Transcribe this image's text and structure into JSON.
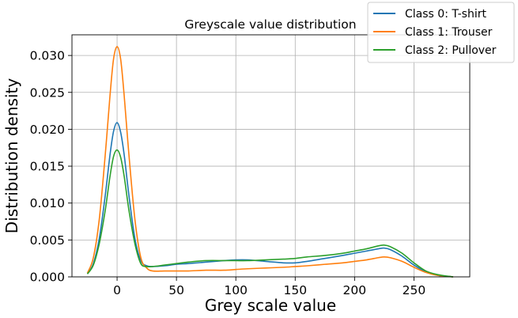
{
  "chart_data": {
    "type": "line",
    "title": "Greyscale value distribution",
    "xlabel": "Grey scale value",
    "ylabel": "Distribution density",
    "xlim": [
      -38,
      297
    ],
    "ylim": [
      0,
      0.0328
    ],
    "x_ticks": [
      0,
      50,
      100,
      150,
      200,
      250
    ],
    "y_ticks": [
      0.0,
      0.005,
      0.01,
      0.015,
      0.02,
      0.025,
      0.03
    ],
    "x_tick_labels": [
      "0",
      "50",
      "100",
      "150",
      "200",
      "250"
    ],
    "y_tick_labels": [
      "0.000",
      "0.005",
      "0.010",
      "0.015",
      "0.020",
      "0.025",
      "0.030"
    ],
    "grid": true,
    "legend_position": "top-right",
    "x": [
      -38,
      -25,
      -20,
      -15,
      -10,
      -6,
      -3,
      0,
      3,
      6,
      10,
      15,
      20,
      25,
      30,
      40,
      50,
      60,
      75,
      90,
      100,
      110,
      125,
      140,
      150,
      160,
      175,
      190,
      200,
      210,
      220,
      225,
      230,
      240,
      250,
      260,
      270,
      280,
      283,
      297
    ],
    "series": [
      {
        "name": "Class 0: T-shirt",
        "color": "#1f77b4",
        "values": [
          null,
          0.0004,
          0.0018,
          0.0052,
          0.011,
          0.0165,
          0.0197,
          0.0209,
          0.0196,
          0.0165,
          0.011,
          0.0052,
          0.0022,
          0.0015,
          0.0014,
          0.0015,
          0.0017,
          0.0018,
          0.002,
          0.0022,
          0.0023,
          0.0023,
          0.0021,
          0.0019,
          0.0019,
          0.0021,
          0.0025,
          0.0029,
          0.0032,
          0.0035,
          0.0038,
          0.0039,
          0.0037,
          0.0028,
          0.0016,
          0.0007,
          0.0002,
          5e-05,
          0.0,
          null
        ]
      },
      {
        "name": "Class 1: Trouser",
        "color": "#ff7f0e",
        "values": [
          null,
          0.0005,
          0.0026,
          0.0078,
          0.0165,
          0.0245,
          0.0295,
          0.0312,
          0.0295,
          0.0245,
          0.0165,
          0.0078,
          0.0026,
          0.0012,
          0.0008,
          0.0008,
          0.0008,
          0.0008,
          0.0009,
          0.0009,
          0.001,
          0.0011,
          0.0012,
          0.0013,
          0.0014,
          0.0015,
          0.0017,
          0.0019,
          0.0021,
          0.0023,
          0.0026,
          0.0027,
          0.0026,
          0.0021,
          0.0013,
          0.0006,
          0.0002,
          5e-05,
          0.0,
          null
        ]
      },
      {
        "name": "Class 2: Pullover",
        "color": "#2ca02c",
        "values": [
          null,
          0.0004,
          0.0016,
          0.0045,
          0.009,
          0.0136,
          0.0163,
          0.0172,
          0.0162,
          0.0136,
          0.009,
          0.0045,
          0.0018,
          0.0014,
          0.0014,
          0.0016,
          0.0018,
          0.002,
          0.0022,
          0.0022,
          0.0022,
          0.0022,
          0.0023,
          0.0024,
          0.0025,
          0.0027,
          0.0029,
          0.0032,
          0.0035,
          0.0038,
          0.0042,
          0.0043,
          0.0041,
          0.0032,
          0.0019,
          0.0008,
          0.0003,
          6e-05,
          0.0,
          null
        ]
      }
    ]
  }
}
